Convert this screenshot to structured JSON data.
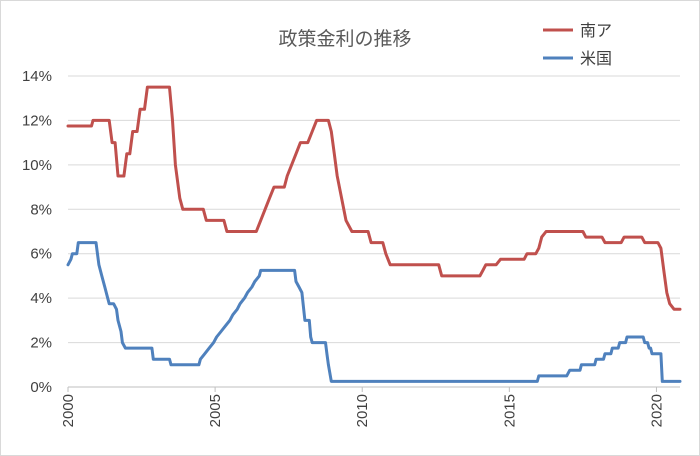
{
  "chart_data": {
    "type": "line",
    "title": "政策金利の推移",
    "xlabel": "",
    "ylabel": "",
    "xlim": [
      2000,
      2020.8
    ],
    "ylim": [
      0,
      14
    ],
    "x_ticks": [
      "2000",
      "2005",
      "2010",
      "2015",
      "2020"
    ],
    "y_ticks": [
      "0%",
      "2%",
      "4%",
      "6%",
      "8%",
      "10%",
      "12%",
      "14%"
    ],
    "grid": true,
    "legend_position": "top-right",
    "series": [
      {
        "name": "南ア",
        "color": "#c0504d",
        "points": [
          [
            2000.0,
            11.75
          ],
          [
            2000.8,
            11.75
          ],
          [
            2000.85,
            12.0
          ],
          [
            2001.4,
            12.0
          ],
          [
            2001.5,
            11.0
          ],
          [
            2001.6,
            11.0
          ],
          [
            2001.7,
            9.5
          ],
          [
            2001.9,
            9.5
          ],
          [
            2002.0,
            10.5
          ],
          [
            2002.1,
            10.5
          ],
          [
            2002.2,
            11.5
          ],
          [
            2002.35,
            11.5
          ],
          [
            2002.45,
            12.5
          ],
          [
            2002.6,
            12.5
          ],
          [
            2002.7,
            13.5
          ],
          [
            2003.45,
            13.5
          ],
          [
            2003.55,
            12.0
          ],
          [
            2003.65,
            10.0
          ],
          [
            2003.8,
            8.5
          ],
          [
            2003.9,
            8.0
          ],
          [
            2004.6,
            8.0
          ],
          [
            2004.7,
            7.5
          ],
          [
            2005.3,
            7.5
          ],
          [
            2005.4,
            7.0
          ],
          [
            2006.4,
            7.0
          ],
          [
            2006.55,
            7.5
          ],
          [
            2006.7,
            8.0
          ],
          [
            2006.85,
            8.5
          ],
          [
            2007.0,
            9.0
          ],
          [
            2007.35,
            9.0
          ],
          [
            2007.45,
            9.5
          ],
          [
            2007.6,
            10.0
          ],
          [
            2007.75,
            10.5
          ],
          [
            2007.9,
            11.0
          ],
          [
            2008.15,
            11.0
          ],
          [
            2008.3,
            11.5
          ],
          [
            2008.45,
            12.0
          ],
          [
            2008.85,
            12.0
          ],
          [
            2008.95,
            11.5
          ],
          [
            2009.05,
            10.5
          ],
          [
            2009.15,
            9.5
          ],
          [
            2009.3,
            8.5
          ],
          [
            2009.45,
            7.5
          ],
          [
            2009.65,
            7.0
          ],
          [
            2010.2,
            7.0
          ],
          [
            2010.3,
            6.5
          ],
          [
            2010.7,
            6.5
          ],
          [
            2010.8,
            6.0
          ],
          [
            2010.95,
            5.5
          ],
          [
            2012.6,
            5.5
          ],
          [
            2012.7,
            5.0
          ],
          [
            2014.0,
            5.0
          ],
          [
            2014.1,
            5.25
          ],
          [
            2014.2,
            5.5
          ],
          [
            2014.55,
            5.5
          ],
          [
            2014.7,
            5.75
          ],
          [
            2015.5,
            5.75
          ],
          [
            2015.6,
            6.0
          ],
          [
            2015.9,
            6.0
          ],
          [
            2016.0,
            6.25
          ],
          [
            2016.1,
            6.75
          ],
          [
            2016.25,
            7.0
          ],
          [
            2017.5,
            7.0
          ],
          [
            2017.6,
            6.75
          ],
          [
            2018.15,
            6.75
          ],
          [
            2018.25,
            6.5
          ],
          [
            2018.8,
            6.5
          ],
          [
            2018.9,
            6.75
          ],
          [
            2019.5,
            6.75
          ],
          [
            2019.6,
            6.5
          ],
          [
            2020.05,
            6.5
          ],
          [
            2020.15,
            6.25
          ],
          [
            2020.25,
            5.25
          ],
          [
            2020.35,
            4.25
          ],
          [
            2020.45,
            3.75
          ],
          [
            2020.6,
            3.5
          ],
          [
            2020.8,
            3.5
          ]
        ]
      },
      {
        "name": "米国",
        "color": "#4f81bd",
        "points": [
          [
            2000.0,
            5.5
          ],
          [
            2000.1,
            5.75
          ],
          [
            2000.15,
            6.0
          ],
          [
            2000.3,
            6.0
          ],
          [
            2000.35,
            6.5
          ],
          [
            2000.95,
            6.5
          ],
          [
            2001.05,
            5.5
          ],
          [
            2001.15,
            5.0
          ],
          [
            2001.25,
            4.5
          ],
          [
            2001.35,
            4.0
          ],
          [
            2001.4,
            3.75
          ],
          [
            2001.55,
            3.75
          ],
          [
            2001.65,
            3.5
          ],
          [
            2001.7,
            3.0
          ],
          [
            2001.8,
            2.5
          ],
          [
            2001.85,
            2.0
          ],
          [
            2001.95,
            1.75
          ],
          [
            2002.85,
            1.75
          ],
          [
            2002.9,
            1.25
          ],
          [
            2003.45,
            1.25
          ],
          [
            2003.5,
            1.0
          ],
          [
            2004.45,
            1.0
          ],
          [
            2004.5,
            1.25
          ],
          [
            2004.65,
            1.5
          ],
          [
            2004.8,
            1.75
          ],
          [
            2004.95,
            2.0
          ],
          [
            2005.05,
            2.25
          ],
          [
            2005.2,
            2.5
          ],
          [
            2005.35,
            2.75
          ],
          [
            2005.5,
            3.0
          ],
          [
            2005.6,
            3.25
          ],
          [
            2005.75,
            3.5
          ],
          [
            2005.85,
            3.75
          ],
          [
            2006.0,
            4.0
          ],
          [
            2006.1,
            4.25
          ],
          [
            2006.25,
            4.5
          ],
          [
            2006.35,
            4.75
          ],
          [
            2006.5,
            5.0
          ],
          [
            2006.55,
            5.25
          ],
          [
            2007.7,
            5.25
          ],
          [
            2007.75,
            4.75
          ],
          [
            2007.85,
            4.5
          ],
          [
            2007.95,
            4.25
          ],
          [
            2008.05,
            3.0
          ],
          [
            2008.2,
            3.0
          ],
          [
            2008.25,
            2.25
          ],
          [
            2008.3,
            2.0
          ],
          [
            2008.75,
            2.0
          ],
          [
            2008.8,
            1.5
          ],
          [
            2008.85,
            1.0
          ],
          [
            2008.95,
            0.25
          ],
          [
            2015.95,
            0.25
          ],
          [
            2016.0,
            0.5
          ],
          [
            2016.95,
            0.5
          ],
          [
            2017.05,
            0.75
          ],
          [
            2017.4,
            0.75
          ],
          [
            2017.45,
            1.0
          ],
          [
            2017.9,
            1.0
          ],
          [
            2017.95,
            1.25
          ],
          [
            2018.2,
            1.25
          ],
          [
            2018.25,
            1.5
          ],
          [
            2018.45,
            1.5
          ],
          [
            2018.5,
            1.75
          ],
          [
            2018.7,
            1.75
          ],
          [
            2018.75,
            2.0
          ],
          [
            2018.95,
            2.0
          ],
          [
            2019.0,
            2.25
          ],
          [
            2019.55,
            2.25
          ],
          [
            2019.6,
            2.0
          ],
          [
            2019.7,
            2.0
          ],
          [
            2019.75,
            1.75
          ],
          [
            2019.8,
            1.75
          ],
          [
            2019.85,
            1.5
          ],
          [
            2020.15,
            1.5
          ],
          [
            2020.2,
            0.25
          ],
          [
            2020.8,
            0.25
          ]
        ]
      }
    ]
  }
}
